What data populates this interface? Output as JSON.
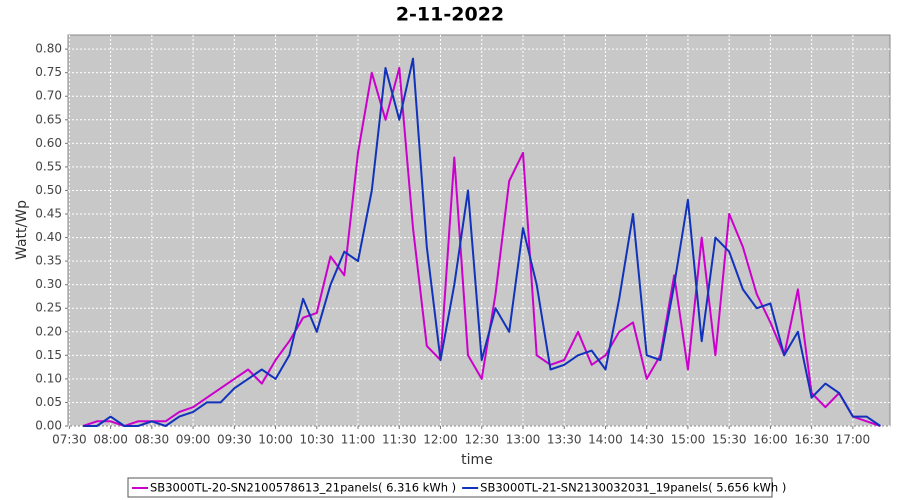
{
  "chart_data": {
    "type": "line",
    "title": "2-11-2022",
    "x_label": "time",
    "y_label": "Watt/Wp",
    "x": [
      "07:40",
      "07:50",
      "08:00",
      "08:10",
      "08:20",
      "08:30",
      "08:40",
      "08:50",
      "09:00",
      "09:10",
      "09:20",
      "09:30",
      "09:40",
      "09:50",
      "10:00",
      "10:10",
      "10:20",
      "10:30",
      "10:40",
      "10:50",
      "11:00",
      "11:10",
      "11:20",
      "11:30",
      "11:40",
      "11:50",
      "12:00",
      "12:10",
      "12:20",
      "12:30",
      "12:40",
      "12:50",
      "13:00",
      "13:10",
      "13:20",
      "13:30",
      "13:40",
      "13:50",
      "14:00",
      "14:10",
      "14:20",
      "14:30",
      "14:40",
      "14:50",
      "15:00",
      "15:10",
      "15:20",
      "15:30",
      "15:40",
      "15:50",
      "16:00",
      "16:10",
      "16:20",
      "16:30",
      "16:40",
      "16:50",
      "17:00",
      "17:10",
      "17:20"
    ],
    "series": [
      {
        "name": "SB3000TL-20-SN2100578613_21panels( 6.316 kWh )",
        "color": "#cc00cc",
        "values": [
          0.0,
          0.01,
          0.01,
          0.0,
          0.01,
          0.01,
          0.01,
          0.03,
          0.04,
          0.06,
          0.08,
          0.1,
          0.12,
          0.09,
          0.14,
          0.18,
          0.23,
          0.24,
          0.36,
          0.32,
          0.58,
          0.75,
          0.65,
          0.76,
          0.42,
          0.17,
          0.14,
          0.57,
          0.15,
          0.1,
          0.28,
          0.52,
          0.58,
          0.15,
          0.13,
          0.14,
          0.2,
          0.13,
          0.15,
          0.2,
          0.22,
          0.1,
          0.15,
          0.32,
          0.12,
          0.4,
          0.15,
          0.45,
          0.38,
          0.28,
          0.22,
          0.15,
          0.29,
          0.07,
          0.04,
          0.07,
          0.02,
          0.01,
          0.0
        ]
      },
      {
        "name": "SB3000TL-21-SN2130032031_19panels( 5.656 kWh )",
        "color": "#1133bb",
        "values": [
          0.0,
          0.0,
          0.02,
          0.0,
          0.0,
          0.01,
          0.0,
          0.02,
          0.03,
          0.05,
          0.05,
          0.08,
          0.1,
          0.12,
          0.1,
          0.15,
          0.27,
          0.2,
          0.3,
          0.37,
          0.35,
          0.5,
          0.76,
          0.65,
          0.78,
          0.38,
          0.14,
          0.3,
          0.5,
          0.14,
          0.25,
          0.2,
          0.42,
          0.3,
          0.12,
          0.13,
          0.15,
          0.16,
          0.12,
          0.27,
          0.45,
          0.15,
          0.14,
          0.3,
          0.48,
          0.18,
          0.4,
          0.37,
          0.29,
          0.25,
          0.26,
          0.15,
          0.2,
          0.06,
          0.09,
          0.07,
          0.02,
          0.02,
          0.0
        ]
      }
    ],
    "xlim": [
      "07:29",
      "17:27"
    ],
    "xticks": [
      "07:30",
      "08:00",
      "08:30",
      "09:00",
      "09:30",
      "10:00",
      "10:30",
      "11:00",
      "11:30",
      "12:00",
      "12:30",
      "13:00",
      "13:30",
      "14:00",
      "14:30",
      "15:00",
      "15:30",
      "16:00",
      "16:30",
      "17:00"
    ],
    "ylim": [
      0,
      0.83
    ],
    "yticks": [
      {
        "value": 0,
        "label": "0.00"
      },
      {
        "value": 0.05,
        "label": "0.05"
      },
      {
        "value": 0.1,
        "label": "0.10"
      },
      {
        "value": 0.15,
        "label": "0.15"
      },
      {
        "value": 0.2,
        "label": "0.20"
      },
      {
        "value": 0.25,
        "label": "0.25"
      },
      {
        "value": 0.3,
        "label": "0.30"
      },
      {
        "value": 0.35,
        "label": "0.35"
      },
      {
        "value": 0.4,
        "label": "0.40"
      },
      {
        "value": 0.45,
        "label": "0.45"
      },
      {
        "value": 0.5,
        "label": "0.50"
      },
      {
        "value": 0.55,
        "label": "0.55"
      },
      {
        "value": 0.6,
        "label": "0.60"
      },
      {
        "value": 0.65,
        "label": "0.65"
      },
      {
        "value": 0.7,
        "label": "0.70"
      },
      {
        "value": 0.75,
        "label": "0.75"
      },
      {
        "value": 0.8,
        "label": "0.80"
      }
    ],
    "grid": true
  }
}
